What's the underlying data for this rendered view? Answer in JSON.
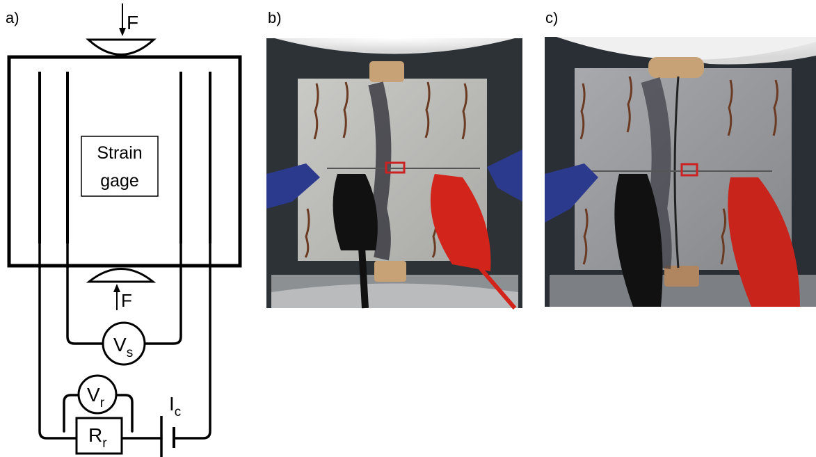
{
  "panels": [
    {
      "label": "a)"
    },
    {
      "label": "b)"
    },
    {
      "label": "c)"
    }
  ],
  "diagram": {
    "force_top": "F",
    "force_bottom": "F",
    "strain_gage": [
      "Strain",
      "gage"
    ],
    "voltmeter_sample": {
      "symbol": "V",
      "subscript": "s"
    },
    "voltmeter_reference": {
      "symbol": "V",
      "subscript": "r"
    },
    "resistor": {
      "symbol": "R",
      "subscript": "r"
    },
    "current": {
      "symbol": "I",
      "subscript": "c"
    }
  }
}
